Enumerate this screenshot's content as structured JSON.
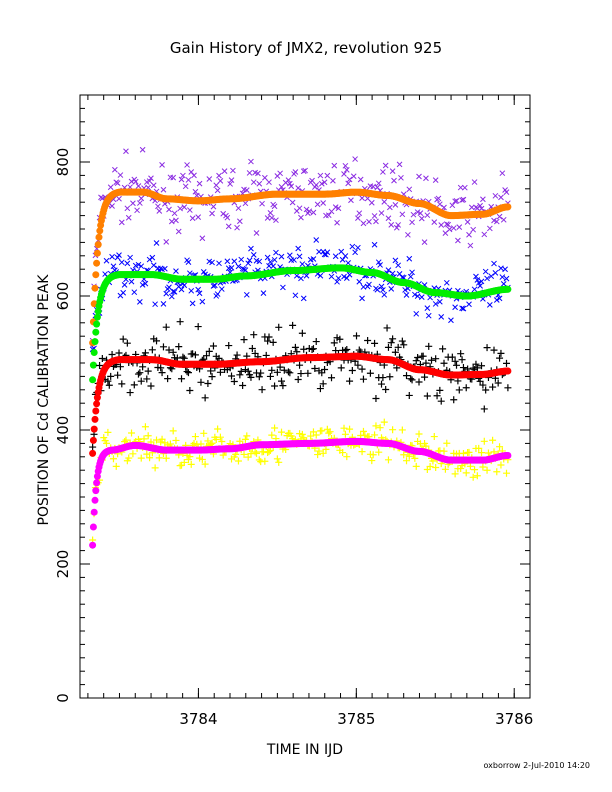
{
  "chart_data": {
    "type": "scatter",
    "title": "Gain History of JMX2, revolution 925",
    "xlabel": "TIME IN IJD",
    "ylabel": "POSITION OF Cd CALIBRATION PEAK",
    "xlim": [
      3783.25,
      3786.1
    ],
    "ylim": [
      0,
      900
    ],
    "xticks": [
      3784,
      3785,
      3786
    ],
    "xtick_labels": [
      "3784",
      "3785",
      "3786"
    ],
    "yticks": [
      0,
      200,
      400,
      600,
      800
    ],
    "ytick_labels": [
      "0",
      "200",
      "400",
      "600",
      "800"
    ],
    "grid": false,
    "legend": "none",
    "footer": "oxborrow  2-Jul-2010 14:20",
    "x_start": 3783.33,
    "x_end": 3785.96,
    "series": [
      {
        "marker": "x",
        "color": "#8a2be2",
        "scatter": 22,
        "start": 555,
        "knots": [
          [
            3783.5,
            758
          ],
          [
            3783.65,
            755
          ],
          [
            3783.8,
            745
          ],
          [
            3784.0,
            740
          ],
          [
            3784.2,
            748
          ],
          [
            3784.5,
            752
          ],
          [
            3784.8,
            753
          ],
          [
            3785.0,
            758
          ],
          [
            3785.2,
            750
          ],
          [
            3785.4,
            735
          ],
          [
            3785.6,
            718
          ],
          [
            3785.8,
            722
          ],
          [
            3785.96,
            738
          ]
        ]
      },
      {
        "marker": "line",
        "color": "#ff8000",
        "width": 7,
        "start": 530,
        "knots": [
          [
            3783.5,
            755
          ],
          [
            3783.65,
            755
          ],
          [
            3783.8,
            745
          ],
          [
            3784.0,
            742
          ],
          [
            3784.2,
            745
          ],
          [
            3784.5,
            752
          ],
          [
            3784.8,
            752
          ],
          [
            3785.0,
            755
          ],
          [
            3785.2,
            750
          ],
          [
            3785.4,
            738
          ],
          [
            3785.6,
            720
          ],
          [
            3785.8,
            722
          ],
          [
            3785.96,
            733
          ]
        ]
      },
      {
        "marker": "x",
        "color": "#0000ff",
        "scatter": 18,
        "start": 490,
        "knots": [
          [
            3783.5,
            635
          ],
          [
            3783.7,
            630
          ],
          [
            3783.9,
            625
          ],
          [
            3784.1,
            622
          ],
          [
            3784.3,
            632
          ],
          [
            3784.6,
            640
          ],
          [
            3784.9,
            645
          ],
          [
            3785.1,
            638
          ],
          [
            3785.3,
            620
          ],
          [
            3785.5,
            603
          ],
          [
            3785.7,
            600
          ],
          [
            3785.96,
            612
          ]
        ]
      },
      {
        "marker": "line",
        "color": "#00ee00",
        "width": 7,
        "start": 475,
        "knots": [
          [
            3783.5,
            632
          ],
          [
            3783.7,
            632
          ],
          [
            3783.9,
            625
          ],
          [
            3784.1,
            625
          ],
          [
            3784.3,
            630
          ],
          [
            3784.6,
            638
          ],
          [
            3784.9,
            642
          ],
          [
            3785.1,
            635
          ],
          [
            3785.3,
            620
          ],
          [
            3785.5,
            605
          ],
          [
            3785.7,
            600
          ],
          [
            3785.96,
            610
          ]
        ]
      },
      {
        "marker": "+",
        "color": "#000000",
        "scatter": 22,
        "start": 365,
        "knots": [
          [
            3783.5,
            505
          ],
          [
            3783.7,
            505
          ],
          [
            3783.9,
            500
          ],
          [
            3784.1,
            498
          ],
          [
            3784.4,
            502
          ],
          [
            3784.7,
            508
          ],
          [
            3785.0,
            510
          ],
          [
            3785.2,
            505
          ],
          [
            3785.4,
            490
          ],
          [
            3785.6,
            478
          ],
          [
            3785.8,
            483
          ],
          [
            3785.96,
            490
          ]
        ]
      },
      {
        "marker": "line",
        "color": "#ff0000",
        "width": 7,
        "start": 365,
        "knots": [
          [
            3783.5,
            505
          ],
          [
            3783.7,
            505
          ],
          [
            3783.9,
            498
          ],
          [
            3784.1,
            498
          ],
          [
            3784.4,
            502
          ],
          [
            3784.7,
            508
          ],
          [
            3785.0,
            510
          ],
          [
            3785.2,
            505
          ],
          [
            3785.4,
            490
          ],
          [
            3785.6,
            482
          ],
          [
            3785.8,
            483
          ],
          [
            3785.96,
            488
          ]
        ]
      },
      {
        "marker": "+",
        "color": "#ffff00",
        "scatter": 14,
        "start": 230,
        "knots": [
          [
            3783.45,
            370
          ],
          [
            3783.6,
            378
          ],
          [
            3783.8,
            372
          ],
          [
            3784.0,
            370
          ],
          [
            3784.2,
            372
          ],
          [
            3784.4,
            378
          ],
          [
            3784.7,
            380
          ],
          [
            3785.0,
            383
          ],
          [
            3785.2,
            380
          ],
          [
            3785.4,
            368
          ],
          [
            3785.6,
            355
          ],
          [
            3785.8,
            355
          ],
          [
            3785.96,
            362
          ]
        ]
      },
      {
        "marker": "line",
        "color": "#ff00ff",
        "width": 7,
        "start": 228,
        "knots": [
          [
            3783.45,
            370
          ],
          [
            3783.6,
            377
          ],
          [
            3783.8,
            370
          ],
          [
            3784.0,
            370
          ],
          [
            3784.2,
            372
          ],
          [
            3784.4,
            378
          ],
          [
            3784.7,
            380
          ],
          [
            3785.0,
            383
          ],
          [
            3785.2,
            380
          ],
          [
            3785.4,
            368
          ],
          [
            3785.6,
            355
          ],
          [
            3785.8,
            355
          ],
          [
            3785.96,
            362
          ]
        ]
      }
    ]
  }
}
